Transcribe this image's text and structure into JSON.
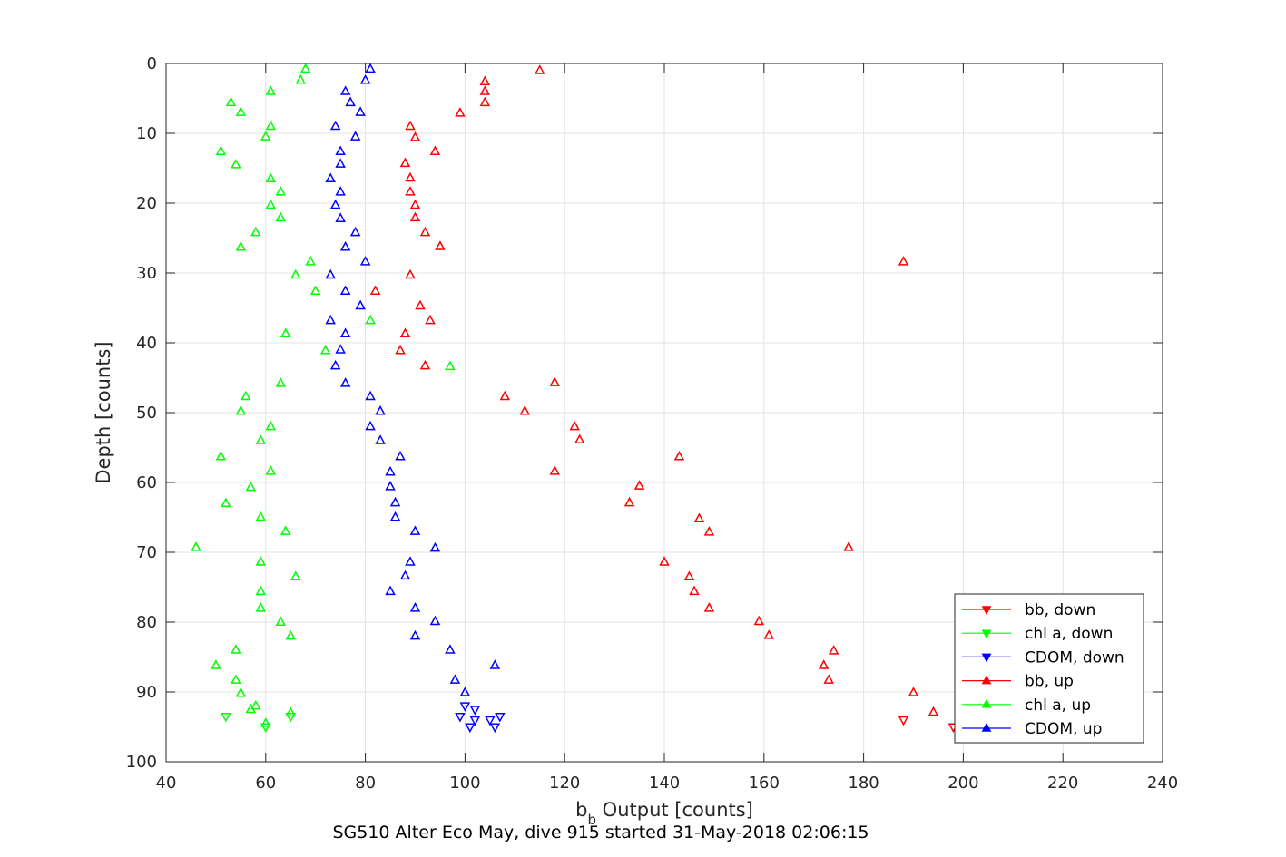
{
  "chart_data": {
    "type": "scatter",
    "title": "SG510 Alter Eco May, dive 915 started 31-May-2018 02:06:15",
    "xlabel_main": "b",
    "xlabel_sub": "b",
    "xlabel_rest": " Output [counts]",
    "ylabel": "Depth [counts]",
    "xlim": [
      40,
      240
    ],
    "ylim": [
      0,
      100
    ],
    "y_reversed": true,
    "grid": true,
    "xticks": [
      "40",
      "60",
      "80",
      "100",
      "120",
      "140",
      "160",
      "180",
      "200",
      "220",
      "240"
    ],
    "yticks": [
      "0",
      "10",
      "20",
      "30",
      "40",
      "50",
      "60",
      "70",
      "80",
      "90",
      "100"
    ],
    "legend_position": "bottom-right",
    "series": [
      {
        "name": "bb, down",
        "color": "#ff0000",
        "marker": "down",
        "points": [
          [
            188,
            94
          ],
          [
            198,
            95
          ]
        ]
      },
      {
        "name": "chl a, down",
        "color": "#00ff00",
        "marker": "down",
        "points": [
          [
            52,
            93.5
          ],
          [
            60,
            95
          ],
          [
            65,
            93.5
          ]
        ]
      },
      {
        "name": "CDOM, down",
        "color": "#0000ff",
        "marker": "down",
        "points": [
          [
            99,
            93.5
          ],
          [
            100,
            92
          ],
          [
            101,
            95
          ],
          [
            102,
            94
          ],
          [
            102,
            92.5
          ],
          [
            105,
            94
          ],
          [
            106,
            95
          ],
          [
            107,
            93.5
          ]
        ]
      },
      {
        "name": "bb, up",
        "color": "#ff0000",
        "marker": "up",
        "points": [
          [
            115,
            1
          ],
          [
            104,
            2.6
          ],
          [
            104,
            4
          ],
          [
            104,
            5.6
          ],
          [
            99,
            7.1
          ],
          [
            89,
            9
          ],
          [
            90,
            10.6
          ],
          [
            94,
            12.6
          ],
          [
            88,
            14.3
          ],
          [
            89,
            16.4
          ],
          [
            89,
            18.4
          ],
          [
            90,
            20.3
          ],
          [
            90,
            22.1
          ],
          [
            92,
            24.2
          ],
          [
            95,
            26.2
          ],
          [
            188,
            28.4
          ],
          [
            89,
            30.3
          ],
          [
            82,
            32.6
          ],
          [
            91,
            34.7
          ],
          [
            93,
            36.8
          ],
          [
            88,
            38.7
          ],
          [
            87,
            41.1
          ],
          [
            92,
            43.3
          ],
          [
            118,
            45.7
          ],
          [
            108,
            47.7
          ],
          [
            112,
            49.8
          ],
          [
            122,
            52
          ],
          [
            123,
            53.9
          ],
          [
            143,
            56.3
          ],
          [
            118,
            58.4
          ],
          [
            135,
            60.5
          ],
          [
            133,
            62.9
          ],
          [
            147,
            65.2
          ],
          [
            149,
            67.1
          ],
          [
            177,
            69.3
          ],
          [
            140,
            71.4
          ],
          [
            145,
            73.5
          ],
          [
            146,
            75.6
          ],
          [
            149,
            78
          ],
          [
            159,
            79.9
          ],
          [
            161,
            81.9
          ],
          [
            174,
            84.1
          ],
          [
            172,
            86.2
          ],
          [
            173,
            88.3
          ],
          [
            190,
            90.1
          ],
          [
            194,
            92.9
          ]
        ]
      },
      {
        "name": "chl a, up",
        "color": "#00ff00",
        "marker": "up",
        "points": [
          [
            68,
            0.8
          ],
          [
            67,
            2.4
          ],
          [
            61,
            4
          ],
          [
            53,
            5.6
          ],
          [
            55,
            7
          ],
          [
            61,
            9
          ],
          [
            60,
            10.5
          ],
          [
            51,
            12.6
          ],
          [
            54,
            14.5
          ],
          [
            61,
            16.5
          ],
          [
            63,
            18.4
          ],
          [
            61,
            20.3
          ],
          [
            63,
            22.1
          ],
          [
            58,
            24.2
          ],
          [
            55,
            26.3
          ],
          [
            69,
            28.4
          ],
          [
            66,
            30.3
          ],
          [
            70,
            32.6
          ],
          [
            81,
            36.8
          ],
          [
            64,
            38.7
          ],
          [
            72,
            41.1
          ],
          [
            97,
            43.4
          ],
          [
            63,
            45.8
          ],
          [
            56,
            47.7
          ],
          [
            55,
            49.8
          ],
          [
            61,
            52
          ],
          [
            59,
            54
          ],
          [
            51,
            56.3
          ],
          [
            61,
            58.4
          ],
          [
            57,
            60.7
          ],
          [
            52,
            63
          ],
          [
            59,
            65
          ],
          [
            64,
            67
          ],
          [
            46,
            69.3
          ],
          [
            59,
            71.4
          ],
          [
            66,
            73.5
          ],
          [
            59,
            75.6
          ],
          [
            59,
            78
          ],
          [
            63,
            80
          ],
          [
            65,
            82
          ],
          [
            54,
            84
          ],
          [
            50,
            86.2
          ],
          [
            54,
            88.3
          ],
          [
            55,
            90.2
          ],
          [
            58,
            92
          ],
          [
            57,
            92.5
          ],
          [
            60,
            94.5
          ],
          [
            65,
            93
          ]
        ]
      },
      {
        "name": "CDOM, up",
        "color": "#0000ff",
        "marker": "up",
        "points": [
          [
            81,
            0.8
          ],
          [
            80,
            2.4
          ],
          [
            76,
            4
          ],
          [
            77,
            5.6
          ],
          [
            79,
            7
          ],
          [
            74,
            9
          ],
          [
            78,
            10.5
          ],
          [
            75,
            12.6
          ],
          [
            75,
            14.4
          ],
          [
            73,
            16.5
          ],
          [
            75,
            18.4
          ],
          [
            74,
            20.3
          ],
          [
            75,
            22.2
          ],
          [
            78,
            24.2
          ],
          [
            76,
            26.3
          ],
          [
            80,
            28.4
          ],
          [
            73,
            30.3
          ],
          [
            76,
            32.6
          ],
          [
            79,
            34.7
          ],
          [
            73,
            36.8
          ],
          [
            76,
            38.7
          ],
          [
            75,
            41
          ],
          [
            74,
            43.3
          ],
          [
            76,
            45.8
          ],
          [
            81,
            47.7
          ],
          [
            83,
            49.8
          ],
          [
            81,
            52
          ],
          [
            83,
            54
          ],
          [
            87,
            56.3
          ],
          [
            85,
            58.5
          ],
          [
            85,
            60.6
          ],
          [
            86,
            62.9
          ],
          [
            86,
            65
          ],
          [
            90,
            67
          ],
          [
            94,
            69.4
          ],
          [
            89,
            71.4
          ],
          [
            88,
            73.4
          ],
          [
            85,
            75.6
          ],
          [
            90,
            78
          ],
          [
            94,
            79.9
          ],
          [
            90,
            82
          ],
          [
            97,
            84
          ],
          [
            106,
            86.2
          ],
          [
            98,
            88.3
          ],
          [
            100,
            90.1
          ]
        ]
      }
    ]
  }
}
